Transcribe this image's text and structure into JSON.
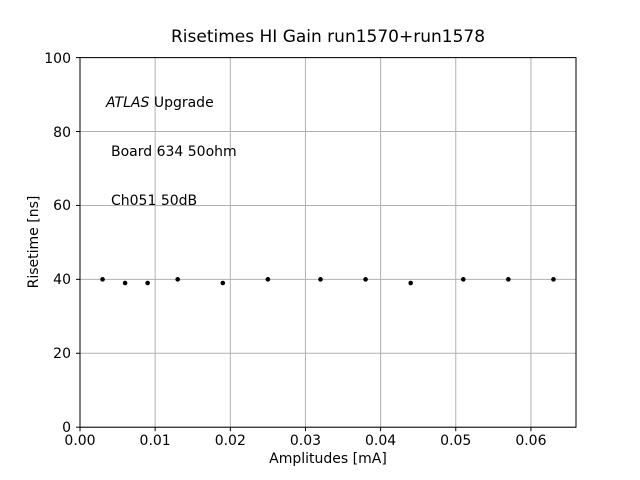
{
  "figure": {
    "title": "Risetimes HI Gain run1570+run1578"
  },
  "annotation": {
    "line1_italic": "ATLAS",
    "line1_rest": " Upgrade",
    "line2": "Board 634 50ohm",
    "line3": "Ch051 50dB"
  },
  "axes": {
    "xlabel": "Amplitudes [mA]",
    "ylabel": "Risetime [ns]"
  },
  "chart_data": {
    "type": "scatter",
    "title": "Risetimes HI Gain run1570+run1578",
    "xlabel": "Amplitudes [mA]",
    "ylabel": "Risetime [ns]",
    "xlim": [
      0.0,
      0.066
    ],
    "ylim": [
      0,
      100
    ],
    "xticks": [
      0.0,
      0.01,
      0.02,
      0.03,
      0.04,
      0.05,
      0.06
    ],
    "xtick_labels": [
      "0.00",
      "0.01",
      "0.02",
      "0.03",
      "0.04",
      "0.05",
      "0.06"
    ],
    "yticks": [
      0,
      20,
      40,
      60,
      80,
      100
    ],
    "ytick_labels": [
      "0",
      "20",
      "40",
      "60",
      "80",
      "100"
    ],
    "grid": true,
    "legend": "none",
    "annotations": [
      "ATLAS Upgrade",
      "Board 634 50ohm",
      "Ch051 50dB"
    ],
    "marker": "point",
    "marker_color": "#000000",
    "grid_color": "#b0b0b0",
    "spine_color": "#000000",
    "background_color": "#ffffff",
    "x": [
      0.003,
      0.006,
      0.009,
      0.013,
      0.019,
      0.025,
      0.032,
      0.038,
      0.044,
      0.051,
      0.057,
      0.063
    ],
    "y": [
      40,
      39,
      39,
      40,
      39,
      40,
      40,
      40,
      39,
      40,
      40,
      40
    ]
  }
}
